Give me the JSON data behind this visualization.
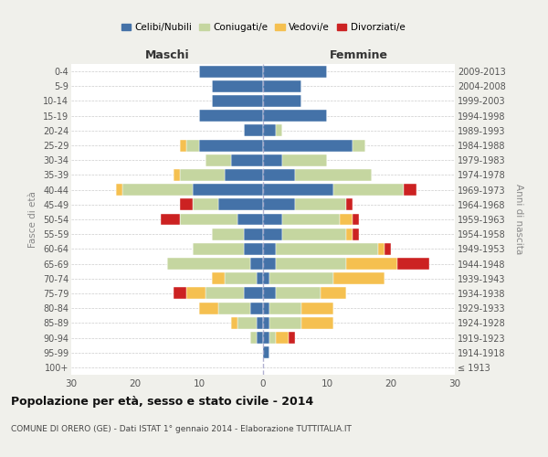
{
  "age_groups": [
    "100+",
    "95-99",
    "90-94",
    "85-89",
    "80-84",
    "75-79",
    "70-74",
    "65-69",
    "60-64",
    "55-59",
    "50-54",
    "45-49",
    "40-44",
    "35-39",
    "30-34",
    "25-29",
    "20-24",
    "15-19",
    "10-14",
    "5-9",
    "0-4"
  ],
  "year_labels": [
    "≤ 1913",
    "1914-1918",
    "1919-1923",
    "1924-1928",
    "1929-1933",
    "1934-1938",
    "1939-1943",
    "1944-1948",
    "1949-1953",
    "1954-1958",
    "1959-1963",
    "1964-1968",
    "1969-1973",
    "1974-1978",
    "1979-1983",
    "1984-1988",
    "1989-1993",
    "1994-1998",
    "1999-2003",
    "2004-2008",
    "2009-2013"
  ],
  "males": {
    "celibi": [
      0,
      0,
      1,
      1,
      2,
      3,
      1,
      2,
      3,
      3,
      4,
      7,
      11,
      6,
      5,
      10,
      3,
      10,
      8,
      8,
      10
    ],
    "coniugati": [
      0,
      0,
      1,
      3,
      5,
      6,
      5,
      13,
      8,
      5,
      9,
      4,
      11,
      7,
      4,
      2,
      0,
      0,
      0,
      0,
      0
    ],
    "vedovi": [
      0,
      0,
      0,
      1,
      3,
      3,
      2,
      0,
      0,
      0,
      0,
      0,
      1,
      1,
      0,
      1,
      0,
      0,
      0,
      0,
      0
    ],
    "divorziati": [
      0,
      0,
      0,
      0,
      0,
      2,
      0,
      0,
      0,
      0,
      3,
      2,
      0,
      0,
      0,
      0,
      0,
      0,
      0,
      0,
      0
    ]
  },
  "females": {
    "nubili": [
      0,
      1,
      1,
      1,
      1,
      2,
      1,
      2,
      2,
      3,
      3,
      5,
      11,
      5,
      3,
      14,
      2,
      10,
      6,
      6,
      10
    ],
    "coniugate": [
      0,
      0,
      1,
      5,
      5,
      7,
      10,
      11,
      16,
      10,
      9,
      8,
      11,
      12,
      7,
      2,
      1,
      0,
      0,
      0,
      0
    ],
    "vedove": [
      0,
      0,
      2,
      5,
      5,
      4,
      8,
      8,
      1,
      1,
      2,
      0,
      0,
      0,
      0,
      0,
      0,
      0,
      0,
      0,
      0
    ],
    "divorziate": [
      0,
      0,
      1,
      0,
      0,
      0,
      0,
      5,
      1,
      1,
      1,
      1,
      2,
      0,
      0,
      0,
      0,
      0,
      0,
      0,
      0
    ]
  },
  "colors": {
    "celibi": "#4472a8",
    "coniugati": "#c5d6a0",
    "vedovi": "#f5c050",
    "divorziati": "#cc2222"
  },
  "title": "Popolazione per età, sesso e stato civile - 2014",
  "subtitle": "COMUNE DI ORERO (GE) - Dati ISTAT 1° gennaio 2014 - Elaborazione TUTTITALIA.IT",
  "xlabel_left": "Maschi",
  "xlabel_right": "Femmine",
  "ylabel_left": "Fasce di età",
  "ylabel_right": "Anni di nascita",
  "xlim": 30,
  "bg_color": "#f0f0eb",
  "plot_bg": "#ffffff"
}
